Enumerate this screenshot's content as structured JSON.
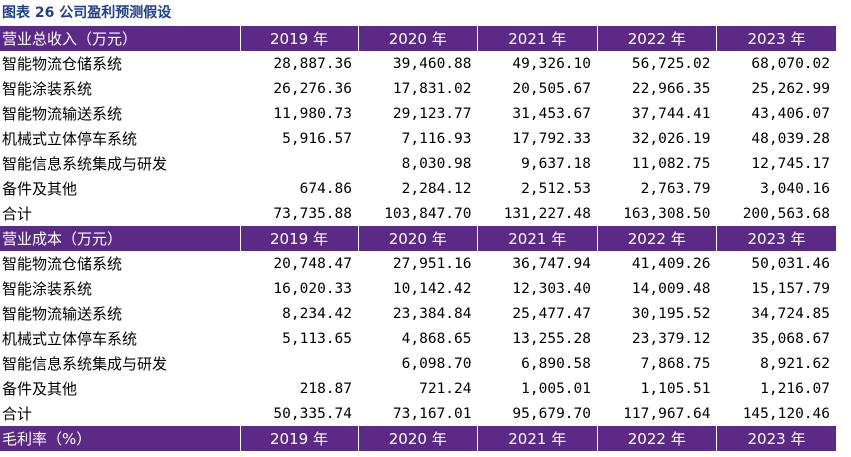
{
  "title": "图表 26 公司盈利预测假设",
  "years": [
    "2019 年",
    "2020 年",
    "2021 年",
    "2022 年",
    "2023 年"
  ],
  "sections": [
    {
      "header": "营业总收入（万元）",
      "rows": [
        {
          "label": "智能物流仓储系统",
          "values": [
            "28,887.36",
            "39,460.88",
            "49,326.10",
            "56,725.02",
            "68,070.02"
          ]
        },
        {
          "label": "智能涂装系统",
          "values": [
            "26,276.36",
            "17,831.02",
            "20,505.67",
            "22,966.35",
            "25,262.99"
          ]
        },
        {
          "label": "智能物流输送系统",
          "values": [
            "11,980.73",
            "29,123.77",
            "31,453.67",
            "37,744.41",
            "43,406.07"
          ]
        },
        {
          "label": "机械式立体停车系统",
          "values": [
            "5,916.57",
            "7,116.93",
            "17,792.33",
            "32,026.19",
            "48,039.28"
          ]
        },
        {
          "label": "智能信息系统集成与研发",
          "values": [
            "",
            "8,030.98",
            "9,637.18",
            "11,082.75",
            "12,745.17"
          ]
        },
        {
          "label": "备件及其他",
          "values": [
            "674.86",
            "2,284.12",
            "2,512.53",
            "2,763.79",
            "3,040.16"
          ]
        },
        {
          "label": "合计",
          "values": [
            "73,735.88",
            "103,847.70",
            "131,227.48",
            "163,308.50",
            "200,563.68"
          ]
        }
      ]
    },
    {
      "header": "营业成本（万元）",
      "rows": [
        {
          "label": "智能物流仓储系统",
          "values": [
            "20,748.47",
            "27,951.16",
            "36,747.94",
            "41,409.26",
            "50,031.46"
          ]
        },
        {
          "label": "智能涂装系统",
          "values": [
            "16,020.33",
            "10,142.42",
            "12,303.40",
            "14,009.48",
            "15,157.79"
          ]
        },
        {
          "label": "智能物流输送系统",
          "values": [
            "8,234.42",
            "23,384.84",
            "25,477.47",
            "30,195.52",
            "34,724.85"
          ]
        },
        {
          "label": "机械式立体停车系统",
          "values": [
            "5,113.65",
            "4,868.65",
            "13,255.28",
            "23,379.12",
            "35,068.67"
          ]
        },
        {
          "label": "智能信息系统集成与研发",
          "values": [
            "",
            "6,098.70",
            "6,890.58",
            "7,868.75",
            "8,921.62"
          ]
        },
        {
          "label": "备件及其他",
          "values": [
            "218.87",
            "721.24",
            "1,005.01",
            "1,105.51",
            "1,216.07"
          ]
        },
        {
          "label": "合计",
          "values": [
            "50,335.74",
            "73,167.01",
            "95,679.70",
            "117,967.64",
            "145,120.46"
          ]
        }
      ]
    },
    {
      "header": "毛利率（%）",
      "rows": []
    }
  ],
  "colors": {
    "header_bg": "#5b2a86",
    "header_text": "#ffffff",
    "title_text": "#1f3f8f"
  }
}
